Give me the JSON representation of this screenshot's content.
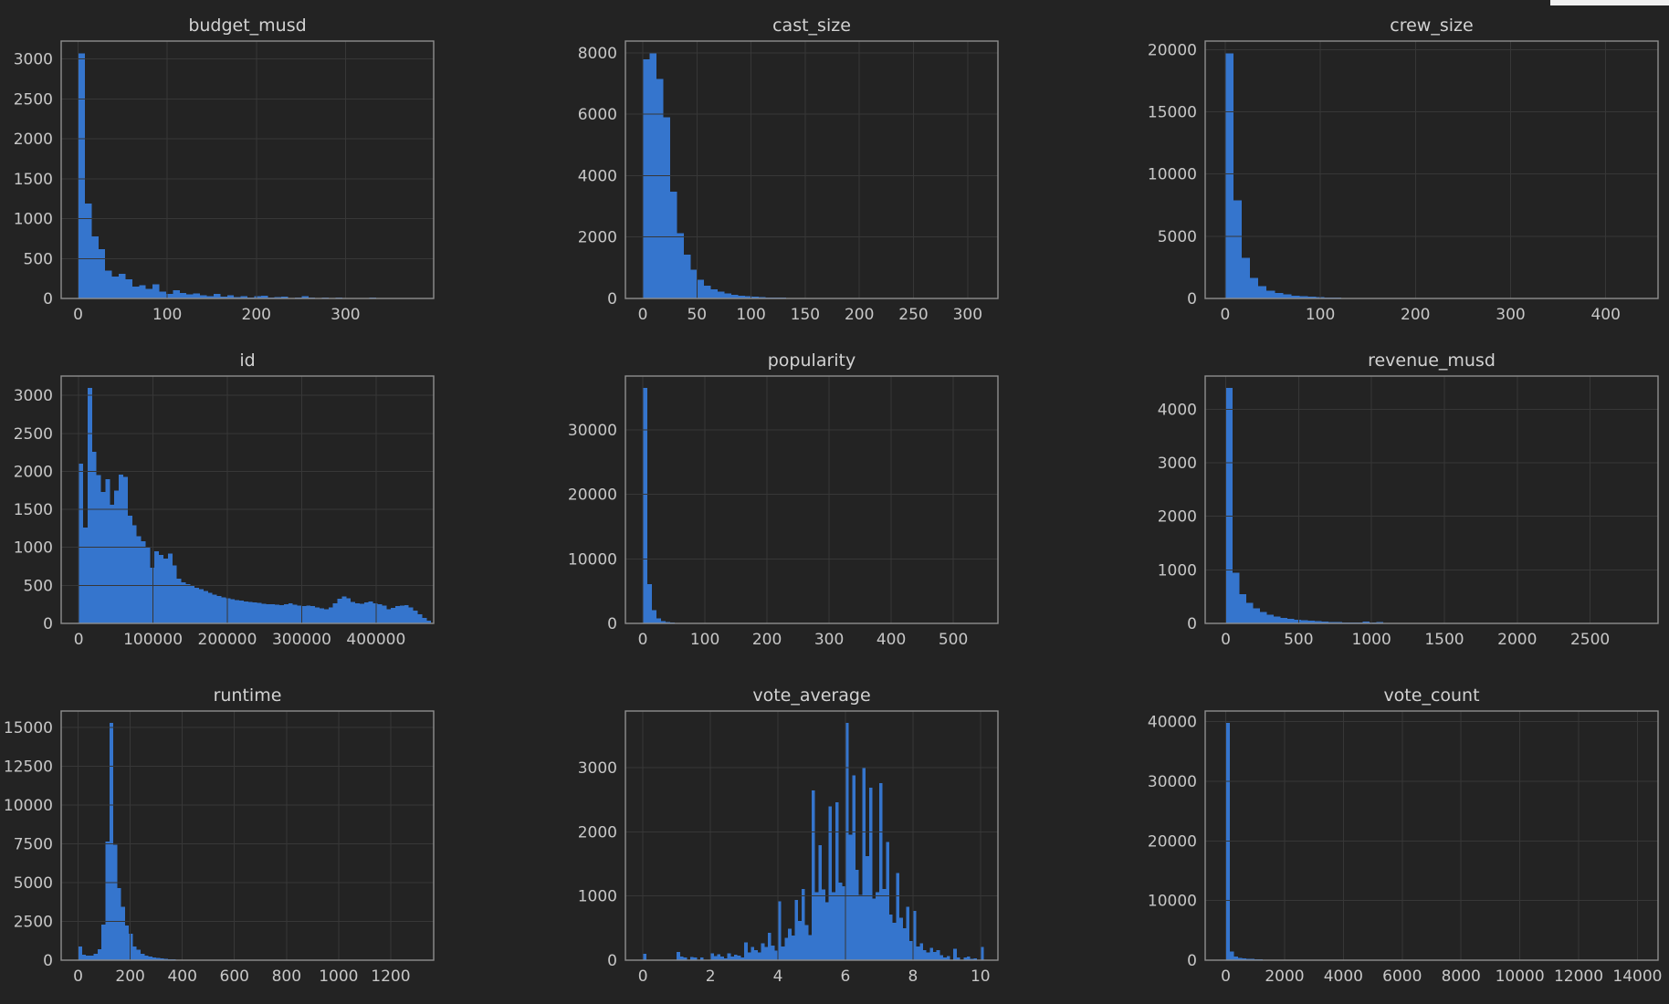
{
  "figure": {
    "background": "#232323",
    "bar_color": "#3575cd",
    "grid_color": "#373737",
    "spine_color": "#8e8e8e",
    "tick_text_color": "#c7c7c7",
    "title_text_color": "#d2d2d2",
    "edge_artifact_color": "#f0f0f0"
  },
  "chart_data": [
    {
      "type": "bar",
      "title": "budget_musd",
      "xlabel": "",
      "ylabel": "",
      "xlim": [
        -19,
        399
      ],
      "ymax": 3224,
      "xticks": [
        0,
        100,
        200,
        300
      ],
      "yticks": [
        0,
        500,
        1000,
        1500,
        2000,
        2500,
        3000
      ],
      "bin_start": 0,
      "bin_width": 7.6,
      "counts": [
        3070,
        1190,
        780,
        620,
        350,
        275,
        310,
        240,
        150,
        165,
        120,
        180,
        85,
        60,
        105,
        70,
        50,
        62,
        40,
        30,
        55,
        25,
        42,
        18,
        30,
        14,
        26,
        32,
        10,
        16,
        22,
        8,
        14,
        26,
        10,
        7,
        12,
        5,
        9,
        4,
        7,
        3,
        5,
        9,
        3,
        2,
        4,
        2,
        1,
        2
      ]
    },
    {
      "type": "bar",
      "title": "cast_size",
      "xlabel": "",
      "ylabel": "",
      "xlim": [
        -16,
        328
      ],
      "ymax": 8380,
      "xticks": [
        0,
        50,
        100,
        150,
        200,
        250,
        300
      ],
      "yticks": [
        0,
        2000,
        4000,
        6000,
        8000
      ],
      "bin_start": 0,
      "bin_width": 6.3,
      "counts": [
        7780,
        7980,
        7150,
        5900,
        3480,
        2120,
        1420,
        930,
        610,
        420,
        300,
        225,
        165,
        125,
        95,
        75,
        58,
        46,
        36,
        29,
        23,
        18,
        15,
        12,
        10,
        8,
        7,
        6,
        5,
        4,
        3,
        3,
        2,
        2,
        2,
        1,
        1,
        1,
        1,
        1,
        0,
        1,
        0,
        0,
        1,
        0,
        0,
        0,
        0,
        1
      ]
    },
    {
      "type": "bar",
      "title": "crew_size",
      "xlabel": "",
      "ylabel": "",
      "xlim": [
        -21,
        455
      ],
      "ymax": 20690,
      "xticks": [
        0,
        100,
        200,
        300,
        400
      ],
      "yticks": [
        0,
        5000,
        10000,
        15000,
        20000
      ],
      "bin_start": 0,
      "bin_width": 8.7,
      "counts": [
        19700,
        7900,
        3280,
        1650,
        980,
        640,
        440,
        320,
        230,
        175,
        135,
        105,
        82,
        64,
        50,
        40,
        32,
        25,
        20,
        16,
        13,
        10,
        8,
        7,
        5,
        4,
        4,
        3,
        2,
        2,
        2,
        1,
        1,
        1,
        1,
        0,
        1,
        0,
        0,
        1,
        0,
        0,
        0,
        0,
        0,
        0,
        0,
        0,
        0,
        1
      ]
    },
    {
      "type": "bar",
      "title": "id",
      "xlabel": "",
      "ylabel": "",
      "xlim": [
        -23500,
        477500
      ],
      "ymax": 3255,
      "xticks": [
        0,
        100000,
        200000,
        300000,
        400000
      ],
      "yticks": [
        0,
        500,
        1000,
        1500,
        2000,
        2500,
        3000
      ],
      "bin_start": 0,
      "bin_width": 6000,
      "counts": [
        2100,
        1260,
        3100,
        2260,
        1950,
        1730,
        1900,
        1560,
        1750,
        1960,
        1930,
        1420,
        1290,
        1150,
        1080,
        1000,
        730,
        950,
        900,
        855,
        920,
        760,
        590,
        540,
        515,
        495,
        470,
        450,
        425,
        400,
        380,
        360,
        345,
        330,
        318,
        308,
        298,
        290,
        282,
        275,
        268,
        260,
        254,
        250,
        246,
        242,
        250,
        262,
        246,
        232,
        226,
        236,
        226,
        212,
        196,
        186,
        212,
        262,
        322,
        356,
        332,
        282,
        266,
        256,
        276,
        286,
        262,
        250,
        232,
        186,
        206,
        226,
        232,
        242,
        210,
        170,
        120,
        70,
        35
      ]
    },
    {
      "type": "bar",
      "title": "popularity",
      "xlabel": "",
      "ylabel": "",
      "xlim": [
        -28,
        572
      ],
      "ymax": 38330,
      "xticks": [
        0,
        100,
        200,
        300,
        400,
        500
      ],
      "yticks": [
        0,
        10000,
        20000,
        30000
      ],
      "bin_start": 0,
      "bin_width": 7.3,
      "counts": [
        36500,
        6100,
        2050,
        780,
        340,
        185,
        115,
        75,
        50,
        34,
        24,
        17,
        12,
        9,
        7,
        5,
        4,
        3,
        2,
        2,
        1,
        1,
        1,
        1,
        0,
        1,
        0,
        0,
        1,
        1
      ]
    },
    {
      "type": "bar",
      "title": "revenue_musd",
      "xlabel": "",
      "ylabel": "",
      "xlim": [
        -141,
        2966
      ],
      "ymax": 4620,
      "xticks": [
        0,
        500,
        1000,
        1500,
        2000,
        2500
      ],
      "yticks": [
        0,
        1000,
        2000,
        3000,
        4000
      ],
      "bin_start": 0,
      "bin_width": 47,
      "counts": [
        4400,
        950,
        545,
        380,
        280,
        215,
        165,
        130,
        105,
        86,
        71,
        59,
        49,
        41,
        35,
        29,
        25,
        21,
        18,
        15,
        33,
        13,
        28,
        11,
        9,
        8,
        7,
        6,
        5,
        5,
        4,
        4,
        3,
        3,
        3,
        2,
        2,
        2,
        2,
        2,
        1,
        1,
        1,
        1,
        1,
        1,
        1,
        0,
        1,
        0,
        0,
        1,
        0,
        0,
        0,
        0,
        0,
        0,
        0,
        1
      ]
    },
    {
      "type": "bar",
      "title": "runtime",
      "xlabel": "",
      "ylabel": "",
      "xlim": [
        -65,
        1365
      ],
      "ymax": 16065,
      "xticks": [
        0,
        200,
        400,
        600,
        800,
        1000,
        1200
      ],
      "yticks": [
        0,
        2500,
        5000,
        7500,
        10000,
        12500,
        15000
      ],
      "bin_start": 0,
      "bin_width": 15,
      "counts": [
        880,
        340,
        290,
        300,
        420,
        700,
        2300,
        7650,
        15300,
        7450,
        4650,
        3450,
        2250,
        1700,
        880,
        680,
        400,
        290,
        230,
        180,
        140,
        110,
        85,
        65,
        50,
        40,
        30,
        25,
        20,
        15,
        12,
        10,
        8,
        6,
        5,
        4,
        3,
        3,
        2,
        2
      ]
    },
    {
      "type": "bar",
      "title": "vote_average",
      "xlabel": "",
      "ylabel": "",
      "xlim": [
        -0.52,
        10.52
      ],
      "ymax": 3885,
      "xticks": [
        0,
        2,
        4,
        6,
        8,
        10
      ],
      "yticks": [
        0,
        1000,
        2000,
        3000
      ],
      "bin_start": 0,
      "bin_width": 0.1,
      "counts": [
        100,
        0,
        0,
        0,
        0,
        0,
        0,
        0,
        0,
        0,
        130,
        60,
        40,
        0,
        50,
        45,
        0,
        40,
        0,
        0,
        110,
        65,
        95,
        60,
        30,
        105,
        60,
        85,
        70,
        40,
        280,
        120,
        205,
        160,
        120,
        265,
        205,
        430,
        230,
        150,
        920,
        210,
        350,
        490,
        385,
        940,
        610,
        1110,
        545,
        390,
        2650,
        1060,
        1790,
        1100,
        905,
        2400,
        1060,
        2460,
        1210,
        1150,
        3700,
        1960,
        2880,
        1410,
        1020,
        3010,
        1620,
        2690,
        960,
        1060,
        2760,
        1110,
        1840,
        710,
        580,
        1360,
        660,
        500,
        830,
        300,
        770,
        210,
        260,
        160,
        120,
        195,
        130,
        155,
        80,
        40,
        65,
        0,
        175,
        40,
        0,
        45,
        55,
        20,
        30,
        0,
        205
      ]
    },
    {
      "type": "bar",
      "title": "vote_count",
      "xlabel": "",
      "ylabel": "",
      "xlim": [
        -700,
        14700
      ],
      "ymax": 41790,
      "xticks": [
        0,
        2000,
        4000,
        6000,
        8000,
        10000,
        12000,
        14000
      ],
      "yticks": [
        0,
        10000,
        20000,
        30000,
        40000
      ],
      "bin_start": 0,
      "bin_width": 140,
      "counts": [
        39800,
        1450,
        650,
        420,
        310,
        240,
        195,
        160,
        135,
        115,
        100,
        88,
        77,
        68,
        60,
        53,
        47,
        42,
        38,
        34,
        30,
        27,
        24,
        22,
        20,
        18,
        16,
        15,
        13,
        12
      ]
    }
  ]
}
